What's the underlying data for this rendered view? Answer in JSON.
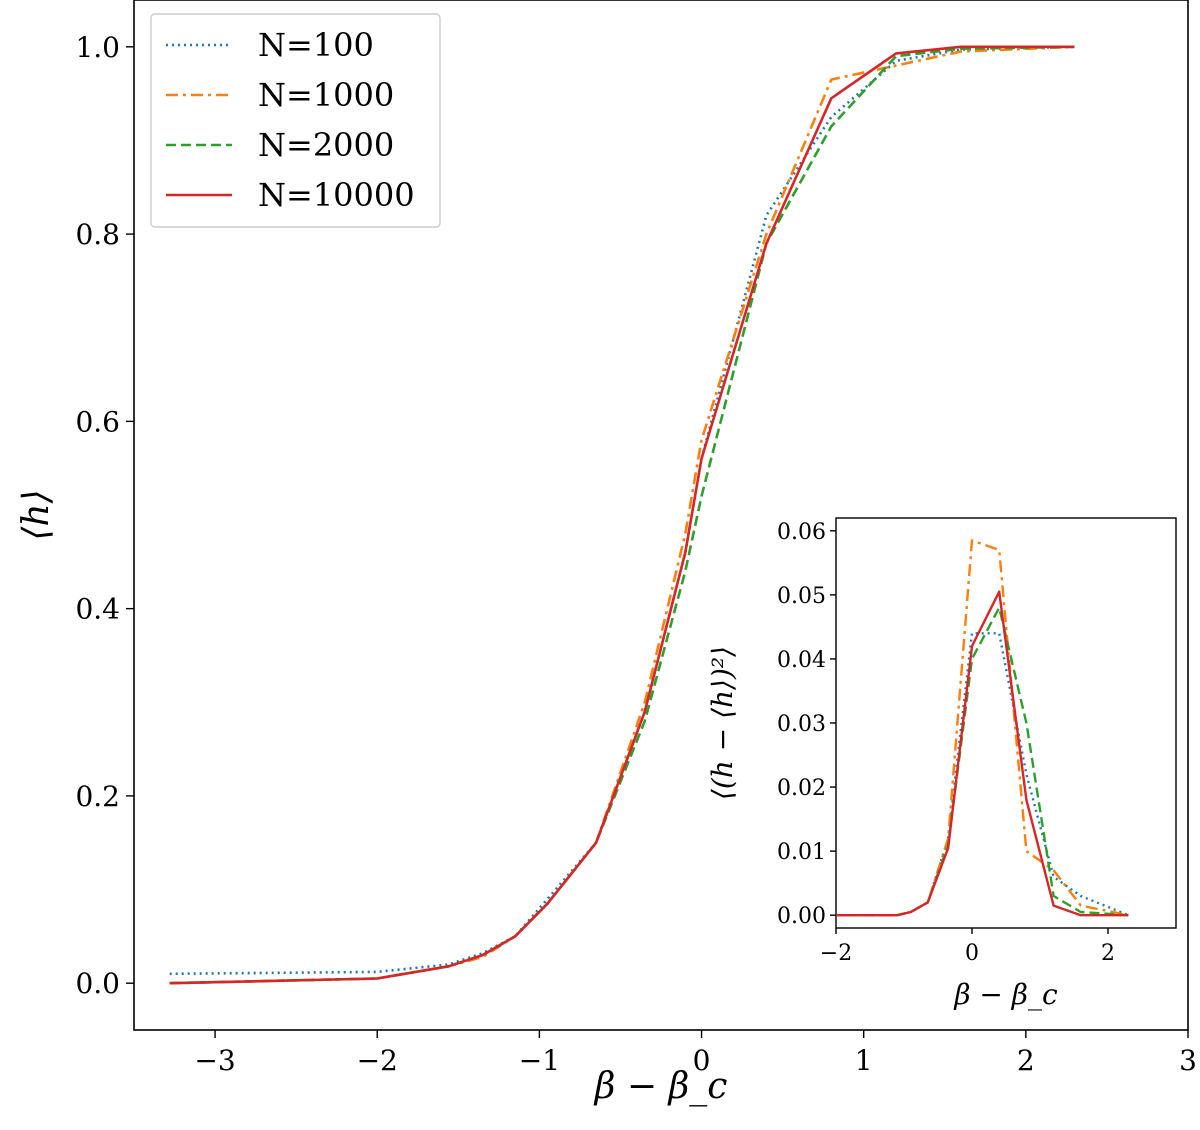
{
  "chart_data": [
    {
      "type": "line",
      "xlabel": "β − β_c",
      "ylabel": "⟨h⟩",
      "xlim": [
        -3.5,
        3
      ],
      "ylim": [
        -0.05,
        1.05
      ],
      "xticks": [
        -3,
        -2,
        -1,
        0,
        1,
        2,
        3
      ],
      "xtick_labels": [
        "−3",
        "−2",
        "−1",
        "0",
        "1",
        "2",
        "3"
      ],
      "yticks": [
        0.0,
        0.2,
        0.4,
        0.6,
        0.8,
        1.0
      ],
      "ytick_labels": [
        "0.0",
        "0.2",
        "0.4",
        "0.6",
        "0.8",
        "1.0"
      ],
      "legend_position": "upper-left",
      "series": [
        {
          "name": "N=100",
          "color": "#1f77b4",
          "dash": "dotted",
          "x": [
            -3.28,
            -2.0,
            -1.56,
            -1.35,
            -1.15,
            -0.95,
            -0.65,
            -0.35,
            -0.1,
            0.0,
            0.4,
            0.8,
            1.2,
            1.6,
            2.3
          ],
          "y": [
            0.01,
            0.012,
            0.02,
            0.032,
            0.05,
            0.09,
            0.15,
            0.29,
            0.46,
            0.56,
            0.82,
            0.925,
            0.985,
            0.997,
            1.0
          ]
        },
        {
          "name": "N=1000",
          "color": "#ff7f0e",
          "dash": "dashdot",
          "x": [
            -3.28,
            -2.0,
            -1.56,
            -1.35,
            -1.15,
            -0.95,
            -0.65,
            -0.35,
            -0.1,
            0.0,
            0.4,
            0.8,
            1.2,
            1.6,
            2.3
          ],
          "y": [
            0.0,
            0.005,
            0.018,
            0.028,
            0.05,
            0.085,
            0.15,
            0.3,
            0.48,
            0.58,
            0.8,
            0.965,
            0.98,
            0.995,
            1.0
          ]
        },
        {
          "name": "N=2000",
          "color": "#2ca02c",
          "dash": "dashed",
          "x": [
            -3.28,
            -2.0,
            -1.56,
            -1.35,
            -1.15,
            -0.95,
            -0.65,
            -0.35,
            -0.1,
            0.0,
            0.4,
            0.8,
            1.2,
            1.6,
            2.3
          ],
          "y": [
            0.0,
            0.005,
            0.018,
            0.03,
            0.05,
            0.085,
            0.15,
            0.28,
            0.44,
            0.52,
            0.79,
            0.915,
            0.99,
            0.998,
            1.0
          ]
        },
        {
          "name": "N=10000",
          "color": "#d62728",
          "dash": "solid",
          "x": [
            -3.28,
            -2.0,
            -1.56,
            -1.35,
            -1.15,
            -0.95,
            -0.65,
            -0.35,
            -0.1,
            0.0,
            0.4,
            0.8,
            1.2,
            1.6,
            2.3
          ],
          "y": [
            0.0,
            0.005,
            0.018,
            0.03,
            0.05,
            0.085,
            0.15,
            0.29,
            0.46,
            0.56,
            0.79,
            0.945,
            0.993,
            1.0,
            1.0
          ]
        }
      ]
    },
    {
      "type": "line",
      "xlabel": "β − β_c",
      "ylabel": "⟨(h − ⟨h⟩)²⟩",
      "xlim": [
        -2,
        3
      ],
      "ylim": [
        -0.002,
        0.062
      ],
      "xticks": [
        -2,
        0,
        2
      ],
      "xtick_labels": [
        "−2",
        "0",
        "2"
      ],
      "yticks": [
        0.0,
        0.01,
        0.02,
        0.03,
        0.04,
        0.05,
        0.06
      ],
      "ytick_labels": [
        "0.00",
        "0.01",
        "0.02",
        "0.03",
        "0.04",
        "0.05",
        "0.06"
      ],
      "series": [
        {
          "name": "N=100",
          "color": "#1f77b4",
          "dash": "dotted",
          "x": [
            -2.0,
            -1.1,
            -0.9,
            -0.65,
            -0.35,
            0.0,
            0.4,
            0.8,
            1.2,
            1.6,
            2.3
          ],
          "y": [
            0.0,
            0.0,
            0.0005,
            0.002,
            0.012,
            0.044,
            0.044,
            0.022,
            0.006,
            0.003,
            0.0
          ]
        },
        {
          "name": "N=1000",
          "color": "#ff7f0e",
          "dash": "dashdot",
          "x": [
            -2.0,
            -1.1,
            -0.9,
            -0.65,
            -0.35,
            0.0,
            0.4,
            0.8,
            1.2,
            1.6,
            2.3
          ],
          "y": [
            0.0,
            0.0,
            0.0005,
            0.002,
            0.012,
            0.0585,
            0.057,
            0.01,
            0.007,
            0.0015,
            0.0
          ]
        },
        {
          "name": "N=2000",
          "color": "#2ca02c",
          "dash": "dashed",
          "x": [
            -2.0,
            -1.1,
            -0.9,
            -0.65,
            -0.35,
            0.0,
            0.4,
            0.8,
            1.2,
            1.6,
            2.3
          ],
          "y": [
            0.0,
            0.0,
            0.0005,
            0.002,
            0.011,
            0.04,
            0.048,
            0.03,
            0.003,
            0.0005,
            0.0
          ]
        },
        {
          "name": "N=10000",
          "color": "#d62728",
          "dash": "solid",
          "x": [
            -2.0,
            -1.1,
            -0.9,
            -0.65,
            -0.35,
            0.0,
            0.4,
            0.8,
            1.2,
            1.6,
            2.3
          ],
          "y": [
            0.0,
            0.0,
            0.0005,
            0.002,
            0.0105,
            0.042,
            0.0505,
            0.018,
            0.0015,
            0.0,
            0.0
          ]
        }
      ]
    }
  ]
}
